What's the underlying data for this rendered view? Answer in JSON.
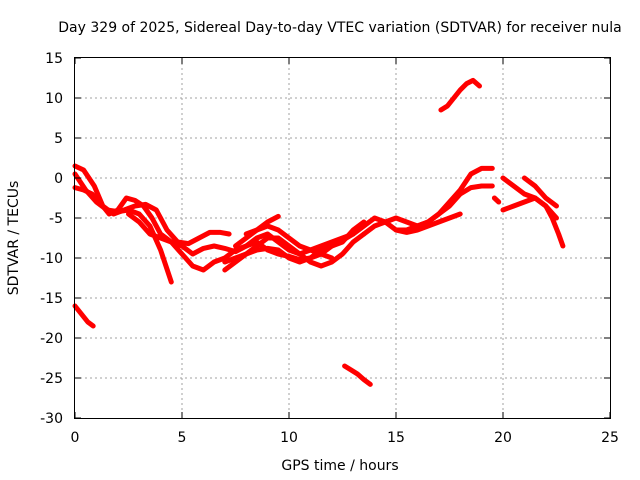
{
  "chart_data": {
    "type": "line",
    "title": "Day 329 of 2025, Sidereal Day-to-day VTEC variation (SDTVAR) for receiver nula",
    "xlabel": "GPS time / hours",
    "ylabel": "SDTVAR / TECUs",
    "xlim": [
      0,
      25
    ],
    "ylim": [
      -30,
      15
    ],
    "xticks": [
      0,
      5,
      10,
      15,
      20,
      25
    ],
    "yticks": [
      -30,
      -25,
      -20,
      -15,
      -10,
      -5,
      0,
      5,
      10,
      15
    ],
    "grid": true,
    "color": "#ff0000",
    "series": [
      {
        "name": "s1",
        "x": [
          0.0,
          0.4,
          0.9,
          1.3,
          1.8,
          2.3,
          2.8,
          3.3,
          3.8,
          4.3,
          4.8,
          5.3,
          5.8,
          6.3,
          6.8,
          7.2
        ],
        "y": [
          1.5,
          1.0,
          -1.0,
          -3.5,
          -4.5,
          -4.0,
          -3.5,
          -3.3,
          -4.0,
          -6.5,
          -8.0,
          -8.2,
          -7.5,
          -6.8,
          -6.8,
          -7.0
        ]
      },
      {
        "name": "s2",
        "x": [
          0.0,
          0.5,
          1.0,
          1.5,
          2.0,
          2.5,
          3.0,
          3.5,
          4.0,
          4.5
        ],
        "y": [
          0.5,
          -1.5,
          -3.0,
          -4.0,
          -4.2,
          -4.0,
          -4.5,
          -6.0,
          -9.0,
          -13.0
        ]
      },
      {
        "name": "s3",
        "x": [
          0.0,
          0.4,
          0.8,
          1.2,
          1.6,
          2.0,
          2.4,
          2.8,
          3.2,
          3.6,
          4.0,
          4.5,
          5.0,
          5.5,
          6.0,
          6.5,
          7.0,
          7.5,
          8.0,
          8.5,
          9.0,
          9.5,
          10.0,
          10.5,
          11.0,
          11.5,
          12.0,
          12.5,
          13.0
        ],
        "y": [
          -1.2,
          -1.5,
          -2.0,
          -3.2,
          -4.5,
          -4.0,
          -2.5,
          -2.8,
          -3.5,
          -5.0,
          -7.0,
          -8.0,
          -8.5,
          -9.5,
          -8.8,
          -8.5,
          -8.8,
          -9.2,
          -8.5,
          -7.5,
          -7.0,
          -8.0,
          -9.0,
          -9.5,
          -9.0,
          -8.5,
          -8.0,
          -7.5,
          -7.0
        ]
      },
      {
        "name": "s4",
        "x": [
          2.5,
          3.0,
          3.5,
          4.0,
          4.5,
          5.0,
          5.5,
          6.0,
          6.5,
          7.0,
          7.5,
          8.0,
          8.5,
          9.0,
          9.5,
          10.0,
          10.5,
          11.0,
          11.5,
          12.0,
          12.5,
          13.0,
          13.5
        ],
        "y": [
          -4.5,
          -5.5,
          -7.0,
          -7.5,
          -8.0,
          -9.5,
          -11.0,
          -11.5,
          -10.5,
          -10.0,
          -9.0,
          -8.5,
          -8.0,
          -9.0,
          -9.5,
          -9.8,
          -10.2,
          -10.0,
          -9.5,
          -8.5,
          -8.0,
          -6.5,
          -5.5
        ]
      },
      {
        "name": "s5",
        "x": [
          7.0,
          7.5,
          8.0,
          8.5,
          9.0,
          9.5,
          10.0,
          10.5,
          11.0,
          11.5,
          12.0,
          12.5,
          13.0,
          13.5,
          14.0,
          14.5,
          15.0,
          15.5,
          16.0,
          16.5,
          17.0,
          17.5,
          18.0
        ],
        "y": [
          -10.5,
          -10.0,
          -9.5,
          -9.0,
          -8.8,
          -9.0,
          -10.0,
          -10.5,
          -10.0,
          -9.0,
          -8.5,
          -7.8,
          -7.0,
          -6.0,
          -5.0,
          -5.5,
          -6.5,
          -6.8,
          -6.5,
          -6.0,
          -5.5,
          -5.0,
          -4.5
        ]
      },
      {
        "name": "s6",
        "x": [
          7.0,
          7.5,
          8.0,
          8.5,
          9.0,
          9.5,
          10.0,
          10.5,
          11.0,
          11.5,
          12.0,
          12.5,
          13.0,
          13.5
        ],
        "y": [
          -11.5,
          -10.5,
          -9.5,
          -8.5,
          -7.5,
          -7.5,
          -8.5,
          -9.5,
          -10.5,
          -11.0,
          -10.5,
          -9.5,
          -8.0,
          -7.0
        ]
      },
      {
        "name": "s7",
        "x": [
          8.0,
          8.5,
          9.0,
          9.5,
          10.0,
          10.5,
          11.0,
          11.5,
          12.0
        ],
        "y": [
          -7.0,
          -6.5,
          -6.0,
          -6.5,
          -7.5,
          -8.5,
          -9.0,
          -9.5,
          -10.0
        ]
      },
      {
        "name": "s8",
        "x": [
          7.5,
          8.0,
          8.5,
          9.0,
          9.5
        ],
        "y": [
          -8.5,
          -7.5,
          -6.5,
          -5.5,
          -4.8
        ]
      },
      {
        "name": "s9",
        "x": [
          13.5,
          14.0,
          14.5,
          15.0,
          15.5,
          16.0,
          16.5,
          17.0,
          17.5,
          18.0,
          18.5,
          19.0,
          19.5
        ],
        "y": [
          -7.0,
          -6.0,
          -5.5,
          -5.0,
          -5.5,
          -6.0,
          -5.5,
          -4.5,
          -3.0,
          -1.5,
          0.5,
          1.2,
          1.2
        ]
      },
      {
        "name": "s10",
        "x": [
          15.0,
          15.5,
          16.0,
          16.5,
          17.0,
          17.5,
          18.0,
          18.5,
          19.0,
          19.5
        ],
        "y": [
          -6.5,
          -6.5,
          -6.0,
          -5.5,
          -4.5,
          -3.5,
          -2.0,
          -1.2,
          -1.0,
          -1.0
        ]
      },
      {
        "name": "s11",
        "x": [
          17.1,
          17.4,
          17.7,
          18.0,
          18.3,
          18.6,
          18.9
        ],
        "y": [
          8.5,
          9.0,
          10.0,
          11.0,
          11.8,
          12.2,
          11.5
        ]
      },
      {
        "name": "s12",
        "x": [
          20.0,
          20.5,
          21.0,
          21.5,
          22.0,
          22.3,
          22.6,
          22.8
        ],
        "y": [
          0.0,
          -1.0,
          -2.0,
          -2.5,
          -3.5,
          -5.0,
          -7.0,
          -8.5
        ]
      },
      {
        "name": "s13",
        "x": [
          20.0,
          20.5,
          21.0,
          21.5,
          22.0,
          22.5
        ],
        "y": [
          -4.0,
          -3.5,
          -3.0,
          -2.5,
          -3.5,
          -5.0
        ]
      },
      {
        "name": "s14",
        "x": [
          19.6,
          19.8
        ],
        "y": [
          -2.5,
          -3.0
        ]
      },
      {
        "name": "s15",
        "x": [
          21.0,
          21.5,
          22.0,
          22.5
        ],
        "y": [
          0.0,
          -1.0,
          -2.5,
          -3.5
        ]
      },
      {
        "name": "s16",
        "x": [
          0.0,
          0.3,
          0.6,
          0.85
        ],
        "y": [
          -16.0,
          -17.0,
          -18.0,
          -18.5
        ]
      },
      {
        "name": "s17",
        "x": [
          12.6,
          12.9,
          13.2,
          13.5,
          13.8
        ],
        "y": [
          -23.5,
          -24.0,
          -24.5,
          -25.2,
          -25.8
        ]
      }
    ]
  }
}
